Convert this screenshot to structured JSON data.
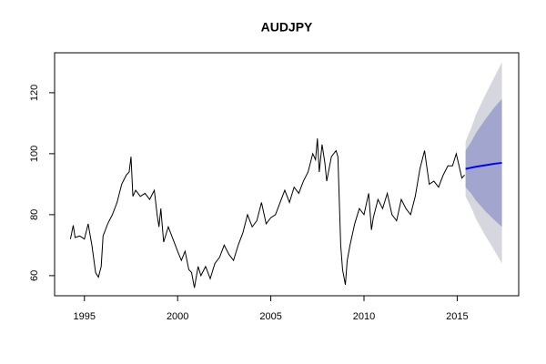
{
  "chart_data": {
    "type": "line",
    "title": "AUDJPY",
    "xlim": [
      1993.4,
      2018.3
    ],
    "ylim": [
      53.4,
      133.1
    ],
    "xticks": [
      1995,
      2000,
      2005,
      2010,
      2015
    ],
    "yticks": [
      60,
      80,
      100,
      120
    ],
    "x": [
      1994.25,
      1994.4,
      1994.5,
      1994.75,
      1995.0,
      1995.2,
      1995.4,
      1995.6,
      1995.75,
      1995.9,
      1996.0,
      1996.25,
      1996.5,
      1996.75,
      1997.0,
      1997.25,
      1997.4,
      1997.5,
      1997.6,
      1997.75,
      1998.0,
      1998.25,
      1998.5,
      1998.75,
      1998.9,
      1999.0,
      1999.1,
      1999.25,
      1999.5,
      1999.75,
      2000.0,
      2000.2,
      2000.4,
      2000.6,
      2000.75,
      2000.9,
      2001.1,
      2001.25,
      2001.5,
      2001.75,
      2002.0,
      2002.25,
      2002.5,
      2002.75,
      2003.0,
      2003.25,
      2003.5,
      2003.75,
      2004.0,
      2004.25,
      2004.5,
      2004.75,
      2005.0,
      2005.25,
      2005.5,
      2005.75,
      2006.0,
      2006.25,
      2006.5,
      2006.75,
      2007.0,
      2007.25,
      2007.4,
      2007.5,
      2007.6,
      2007.75,
      2007.9,
      2008.0,
      2008.25,
      2008.5,
      2008.6,
      2008.75,
      2008.85,
      2009.0,
      2009.1,
      2009.25,
      2009.5,
      2009.75,
      2010.0,
      2010.25,
      2010.4,
      2010.5,
      2010.75,
      2011.0,
      2011.25,
      2011.5,
      2011.75,
      2012.0,
      2012.25,
      2012.5,
      2012.75,
      2013.0,
      2013.25,
      2013.5,
      2013.75,
      2014.0,
      2014.25,
      2014.5,
      2014.75,
      2014.95,
      2015.1,
      2015.25,
      2015.4
    ],
    "series": [
      {
        "color": "#000000",
        "values": [
          72,
          76.5,
          72.5,
          73,
          72,
          77,
          70,
          61,
          59.5,
          63,
          73,
          77,
          80,
          84,
          90,
          93,
          94,
          99,
          86,
          88,
          86,
          87,
          85,
          88,
          80,
          76,
          82,
          71,
          76,
          72,
          68,
          65,
          68,
          62,
          61,
          56,
          63,
          60,
          63,
          59,
          64,
          66,
          70,
          67,
          65,
          70,
          74,
          80,
          76,
          78,
          84,
          77,
          79,
          80,
          84,
          88,
          84,
          89,
          87,
          91,
          94,
          100,
          98,
          105,
          94,
          103,
          97,
          91,
          99,
          101,
          99,
          70,
          62,
          57,
          65,
          70,
          77,
          82,
          80,
          87,
          75,
          79,
          85,
          82,
          87,
          80,
          78,
          85,
          82,
          80,
          86,
          95,
          101,
          90,
          91,
          89,
          93,
          96,
          96,
          100,
          96,
          92,
          93
        ]
      }
    ],
    "forecast": {
      "x": [
        2015.45,
        2015.75,
        2016.0,
        2016.5,
        2017.0,
        2017.4
      ],
      "mean": [
        95,
        95.4,
        95.7,
        96.2,
        96.7,
        97
      ],
      "color": "#0000ff",
      "intervals": [
        {
          "color": "#d6d6de",
          "lower": [
            86,
            82.4,
            78.7,
            73.2,
            68.2,
            64
          ],
          "upper": [
            104,
            108.4,
            112.7,
            119.2,
            125.2,
            130
          ]
        },
        {
          "color": "#a2a5cd",
          "lower": [
            89,
            86.9,
            84.7,
            81.2,
            78.2,
            76
          ],
          "upper": [
            101,
            103.9,
            106.7,
            111.2,
            115.2,
            118
          ]
        }
      ]
    }
  }
}
